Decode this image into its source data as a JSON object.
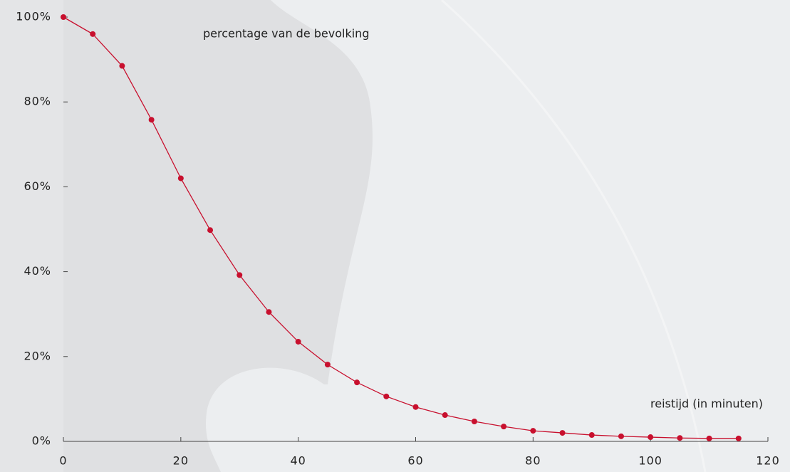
{
  "chart_data": {
    "type": "line",
    "y_annotation": "percentage van de bevolking",
    "x_annotation": "reistijd (in minuten)",
    "x": [
      0,
      5,
      10,
      15,
      20,
      25,
      30,
      35,
      40,
      45,
      50,
      55,
      60,
      65,
      70,
      75,
      80,
      85,
      90,
      95,
      100,
      105,
      110,
      115
    ],
    "values": [
      100,
      96,
      88.5,
      75.8,
      62,
      49.8,
      39.2,
      30.5,
      23.5,
      18.1,
      13.9,
      10.6,
      8.1,
      6.2,
      4.7,
      3.5,
      2.5,
      2.0,
      1.5,
      1.2,
      1.0,
      0.8,
      0.7,
      0.7
    ],
    "color": "#c8102e",
    "xlim": [
      0,
      120
    ],
    "xticks": [
      0,
      20,
      40,
      60,
      80,
      100,
      120
    ],
    "ylim": [
      0,
      100
    ],
    "yticks": [
      {
        "value": 0,
        "label": "0%"
      },
      {
        "value": 20,
        "label": "20%"
      },
      {
        "value": 40,
        "label": "40%"
      },
      {
        "value": 60,
        "label": "60%"
      },
      {
        "value": 80,
        "label": "80%"
      },
      {
        "value": 100,
        "label": "100%"
      }
    ]
  }
}
